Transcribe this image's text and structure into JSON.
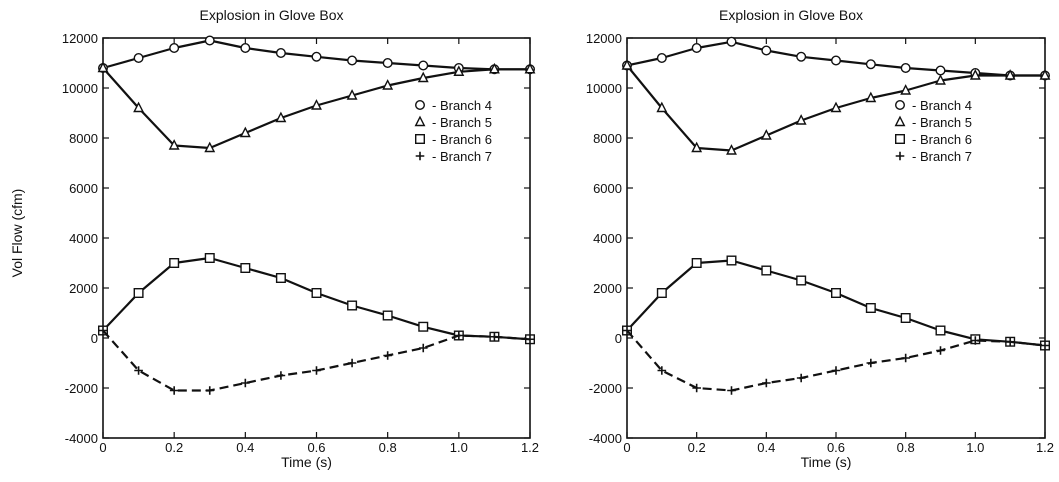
{
  "ylabel": "Vol Flow (cfm)",
  "chart_data": [
    {
      "type": "line",
      "title": "Explosion in Glove Box",
      "xlabel": "Time (s)",
      "ylabel": "Vol Flow (cfm)",
      "xlim": [
        0,
        1.2
      ],
      "ylim": [
        -4000,
        12000
      ],
      "x_ticks": [
        "0",
        "0.2",
        "0.4",
        "0.6",
        "0.8",
        "1.0",
        "1.2"
      ],
      "y_ticks": [
        "-4000",
        "-2000",
        "0",
        "2000",
        "4000",
        "6000",
        "8000",
        "10000",
        "12000"
      ],
      "legend_position": "right-middle",
      "grid": false,
      "series": [
        {
          "name": "Branch 4",
          "marker": "circle",
          "line": "solid",
          "x": [
            0,
            0.1,
            0.2,
            0.3,
            0.4,
            0.5,
            0.6,
            0.7,
            0.8,
            0.9,
            1.0,
            1.1,
            1.2
          ],
          "values": [
            10800,
            11200,
            11600,
            11900,
            11600,
            11400,
            11250,
            11100,
            11000,
            10900,
            10800,
            10750,
            10750
          ]
        },
        {
          "name": "Branch 5",
          "marker": "triangle",
          "line": "solid",
          "x": [
            0,
            0.1,
            0.2,
            0.3,
            0.4,
            0.5,
            0.6,
            0.7,
            0.8,
            0.9,
            1.0,
            1.1,
            1.2
          ],
          "values": [
            10800,
            9200,
            7700,
            7600,
            8200,
            8800,
            9300,
            9700,
            10100,
            10400,
            10650,
            10750,
            10750
          ]
        },
        {
          "name": "Branch 6",
          "marker": "square",
          "line": "solid",
          "x": [
            0,
            0.1,
            0.2,
            0.3,
            0.4,
            0.5,
            0.6,
            0.7,
            0.8,
            0.9,
            1.0,
            1.1,
            1.2
          ],
          "values": [
            300,
            1800,
            3000,
            3200,
            2800,
            2400,
            1800,
            1300,
            900,
            450,
            100,
            50,
            -50
          ]
        },
        {
          "name": "Branch 7",
          "marker": "plus",
          "line": "dashed",
          "x": [
            0,
            0.1,
            0.2,
            0.3,
            0.4,
            0.5,
            0.6,
            0.7,
            0.8,
            0.9,
            1.0,
            1.1,
            1.2
          ],
          "values": [
            300,
            -1300,
            -2100,
            -2100,
            -1800,
            -1500,
            -1300,
            -1000,
            -700,
            -400,
            100,
            50,
            -50
          ]
        }
      ]
    },
    {
      "type": "line",
      "title": "Explosion in Glove Box",
      "xlabel": "Time (s)",
      "ylabel": "",
      "xlim": [
        0,
        1.2
      ],
      "ylim": [
        -4000,
        12000
      ],
      "x_ticks": [
        "0",
        "0.2",
        "0.4",
        "0.6",
        "0.8",
        "1.0",
        "1.2"
      ],
      "y_ticks": [
        "-4000",
        "-2000",
        "0",
        "2000",
        "4000",
        "6000",
        "8000",
        "10000",
        "12000"
      ],
      "legend_position": "right-middle",
      "grid": false,
      "series": [
        {
          "name": "Branch 4",
          "marker": "circle",
          "line": "solid",
          "x": [
            0,
            0.1,
            0.2,
            0.3,
            0.4,
            0.5,
            0.6,
            0.7,
            0.8,
            0.9,
            1.0,
            1.1,
            1.2
          ],
          "values": [
            10900,
            11200,
            11600,
            11850,
            11500,
            11250,
            11100,
            10950,
            10800,
            10700,
            10600,
            10500,
            10500
          ]
        },
        {
          "name": "Branch 5",
          "marker": "triangle",
          "line": "solid",
          "x": [
            0,
            0.1,
            0.2,
            0.3,
            0.4,
            0.5,
            0.6,
            0.7,
            0.8,
            0.9,
            1.0,
            1.1,
            1.2
          ],
          "values": [
            10900,
            9200,
            7600,
            7500,
            8100,
            8700,
            9200,
            9600,
            9900,
            10300,
            10500,
            10500,
            10500
          ]
        },
        {
          "name": "Branch 6",
          "marker": "square",
          "line": "solid",
          "x": [
            0,
            0.1,
            0.2,
            0.3,
            0.4,
            0.5,
            0.6,
            0.7,
            0.8,
            0.9,
            1.0,
            1.1,
            1.2
          ],
          "values": [
            300,
            1800,
            3000,
            3100,
            2700,
            2300,
            1800,
            1200,
            800,
            300,
            -50,
            -150,
            -300
          ]
        },
        {
          "name": "Branch 7",
          "marker": "plus",
          "line": "dashed",
          "x": [
            0,
            0.1,
            0.2,
            0.3,
            0.4,
            0.5,
            0.6,
            0.7,
            0.8,
            0.9,
            1.0,
            1.1,
            1.2
          ],
          "values": [
            300,
            -1300,
            -2000,
            -2100,
            -1800,
            -1600,
            -1300,
            -1000,
            -800,
            -500,
            -100,
            -150,
            -300
          ]
        }
      ]
    }
  ]
}
